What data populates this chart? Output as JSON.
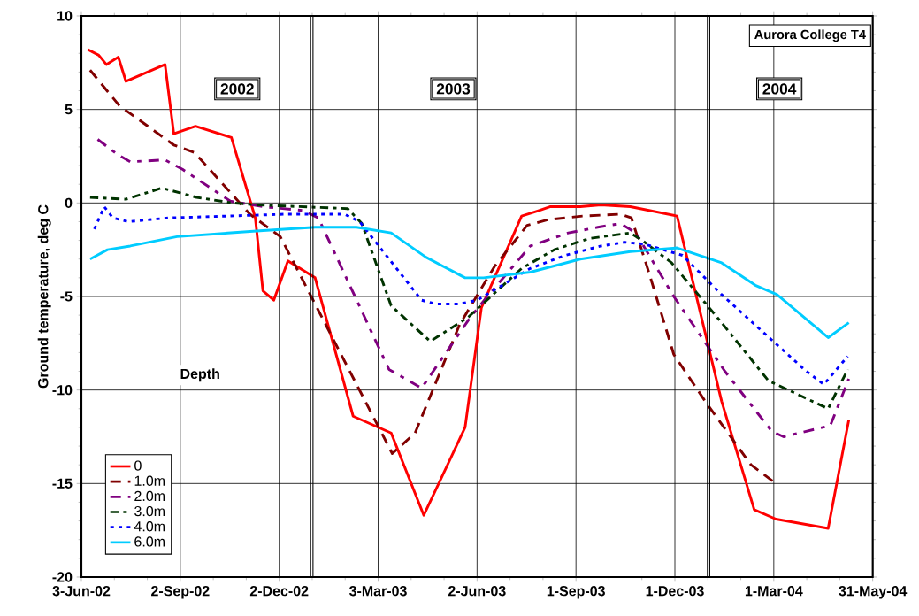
{
  "chart_data": {
    "type": "line",
    "title": "Aurora College T4",
    "ylabel": "Ground temperature, deg C",
    "legend_title": "Depth",
    "legend": "bottom left",
    "grid": true,
    "annotations": [
      "2002",
      "2003",
      "2004"
    ],
    "xlim": [
      "2002-06-03",
      "2004-05-31"
    ],
    "xticks": [
      {
        "value": "2002-06-03",
        "label": "3-Jun-02"
      },
      {
        "value": "2002-09-02",
        "label": "2-Sep-02"
      },
      {
        "value": "2002-12-02",
        "label": "2-Dec-02"
      },
      {
        "value": "2003-03-03",
        "label": "3-Mar-03"
      },
      {
        "value": "2003-06-02",
        "label": "2-Jun-03"
      },
      {
        "value": "2003-09-01",
        "label": "1-Sep-03"
      },
      {
        "value": "2003-12-01",
        "label": "1-Dec-03"
      },
      {
        "value": "2004-03-01",
        "label": "1-Mar-04"
      },
      {
        "value": "2004-05-31",
        "label": "31-May-04"
      }
    ],
    "ylim": [
      -20,
      10
    ],
    "yticks": [
      -20,
      -15,
      -10,
      -5,
      0,
      5,
      10
    ],
    "ref_lines": [
      {
        "axis": "x",
        "value": "2003-01-01",
        "color": "#000000"
      },
      {
        "axis": "x",
        "value": "2004-01-01",
        "color": "#000000"
      }
    ],
    "series": [
      {
        "name": "0",
        "color": "#ff0000",
        "line_style": "solid",
        "x": [
          "2002-06-09",
          "2002-06-19",
          "2002-06-26",
          "2002-07-07",
          "2002-07-14",
          "2002-08-19",
          "2002-08-27",
          "2002-09-16",
          "2002-10-19",
          "2002-11-10",
          "2002-11-17",
          "2002-11-27",
          "2002-12-10",
          "2003-01-04",
          "2003-02-08",
          "2003-03-15",
          "2003-04-14",
          "2003-05-22",
          "2003-06-06",
          "2003-07-13",
          "2003-07-29",
          "2003-08-08",
          "2003-09-05",
          "2003-09-24",
          "2003-10-21",
          "2003-12-03",
          "2004-01-13",
          "2004-02-12",
          "2004-03-03",
          "2004-04-20",
          "2004-05-09"
        ],
        "values": [
          8.2,
          7.9,
          7.4,
          7.8,
          6.5,
          7.4,
          3.7,
          4.1,
          3.5,
          -0.8,
          -4.7,
          -5.2,
          -3.1,
          -4.0,
          -11.4,
          -12.3,
          -16.7,
          -12.0,
          -5.6,
          -0.7,
          -0.4,
          -0.2,
          -0.2,
          -0.1,
          -0.2,
          -0.7,
          -10.6,
          -16.4,
          -16.9,
          -17.4,
          -11.6
        ]
      },
      {
        "name": "1.0m",
        "color": "#800000",
        "line_style": "dashed",
        "x": [
          "2002-06-11",
          "2002-07-08",
          "2002-08-27",
          "2002-09-15",
          "2002-11-05",
          "2002-12-03",
          "2003-03-16",
          "2003-04-06",
          "2003-05-17",
          "2003-06-18",
          "2003-07-18",
          "2003-08-06",
          "2003-09-07",
          "2003-10-12",
          "2003-10-22",
          "2003-11-07",
          "2003-11-30",
          "2003-12-30",
          "2004-02-09",
          "2004-03-03"
        ],
        "values": [
          7.1,
          5.2,
          3.1,
          2.7,
          -0.6,
          -1.8,
          -13.4,
          -12.3,
          -6.5,
          -3.4,
          -1.2,
          -0.9,
          -0.7,
          -0.6,
          -0.8,
          -3.7,
          -8.1,
          -10.7,
          -14.0,
          -15.0
        ]
      },
      {
        "name": "2.0m",
        "color": "#800080",
        "line_style": "dashed",
        "x": [
          "2002-06-18",
          "2002-07-06",
          "2002-07-18",
          "2002-08-19",
          "2002-09-04",
          "2002-09-17",
          "2002-10-18",
          "2002-11-17",
          "2002-12-24",
          "2003-01-07",
          "2003-03-13",
          "2003-04-12",
          "2003-05-27",
          "2003-06-13",
          "2003-07-21",
          "2003-08-25",
          "2003-09-21",
          "2003-10-12",
          "2003-10-26",
          "2003-11-30",
          "2004-01-16",
          "2004-02-28",
          "2004-03-10",
          "2004-04-22",
          "2004-05-09"
        ],
        "values": [
          3.4,
          2.6,
          2.2,
          2.3,
          1.8,
          1.3,
          0.1,
          -0.2,
          -0.4,
          -0.8,
          -8.9,
          -9.9,
          -6.1,
          -4.9,
          -2.3,
          -1.6,
          -1.3,
          -1.1,
          -1.6,
          -5.0,
          -9.0,
          -12.2,
          -12.5,
          -11.9,
          -9.4
        ]
      },
      {
        "name": "3.0m",
        "color": "#003300",
        "line_style": "dashed",
        "x": [
          "2002-06-11",
          "2002-07-14",
          "2002-08-16",
          "2002-09-17",
          "2002-10-20",
          "2002-11-11",
          "2003-02-03",
          "2003-02-16",
          "2003-03-15",
          "2003-04-20",
          "2003-05-25",
          "2003-07-13",
          "2003-08-12",
          "2003-09-13",
          "2003-10-21",
          "2003-11-01",
          "2003-11-28",
          "2004-01-13",
          "2004-02-25",
          "2004-04-20",
          "2004-05-08"
        ],
        "values": [
          0.3,
          0.2,
          0.8,
          0.3,
          0.0,
          -0.1,
          -0.3,
          -1.1,
          -5.5,
          -7.4,
          -6.1,
          -3.5,
          -2.5,
          -1.9,
          -1.6,
          -2.0,
          -3.2,
          -6.4,
          -9.5,
          -11.0,
          -8.9
        ]
      },
      {
        "name": "4.0m",
        "color": "#0000ff",
        "line_style": "dotted",
        "x": [
          "2002-06-15",
          "2002-06-24",
          "2002-07-02",
          "2002-07-16",
          "2002-08-22",
          "2002-10-15",
          "2002-12-08",
          "2003-01-31",
          "2003-02-14",
          "2003-04-12",
          "2003-04-25",
          "2003-05-17",
          "2003-06-02",
          "2003-07-21",
          "2003-08-22",
          "2003-09-24",
          "2003-10-16",
          "2003-11-03",
          "2003-12-08",
          "2004-01-13",
          "2004-03-31",
          "2004-04-16",
          "2004-05-08"
        ],
        "values": [
          -1.4,
          -0.2,
          -0.8,
          -1.0,
          -0.8,
          -0.7,
          -0.6,
          -0.6,
          -1.0,
          -5.2,
          -5.4,
          -5.4,
          -5.2,
          -3.5,
          -2.8,
          -2.3,
          -2.1,
          -2.2,
          -2.8,
          -4.9,
          -9.0,
          -9.7,
          -8.2
        ]
      },
      {
        "name": "6.0m",
        "color": "#00ccff",
        "line_style": "solid",
        "x": [
          "2002-06-11",
          "2002-06-27",
          "2002-07-18",
          "2002-08-30",
          "2002-11-11",
          "2003-01-04",
          "2003-02-11",
          "2003-03-15",
          "2003-04-16",
          "2003-05-22",
          "2003-06-08",
          "2003-07-21",
          "2003-09-05",
          "2003-10-21",
          "2003-12-03",
          "2004-01-13",
          "2004-02-13",
          "2004-03-04",
          "2004-04-20",
          "2004-05-09"
        ],
        "values": [
          -3.0,
          -2.5,
          -2.3,
          -1.8,
          -1.5,
          -1.3,
          -1.3,
          -1.6,
          -2.9,
          -4.0,
          -4.0,
          -3.7,
          -3.0,
          -2.6,
          -2.4,
          -3.2,
          -4.4,
          -4.9,
          -7.2,
          -6.4
        ]
      }
    ]
  }
}
